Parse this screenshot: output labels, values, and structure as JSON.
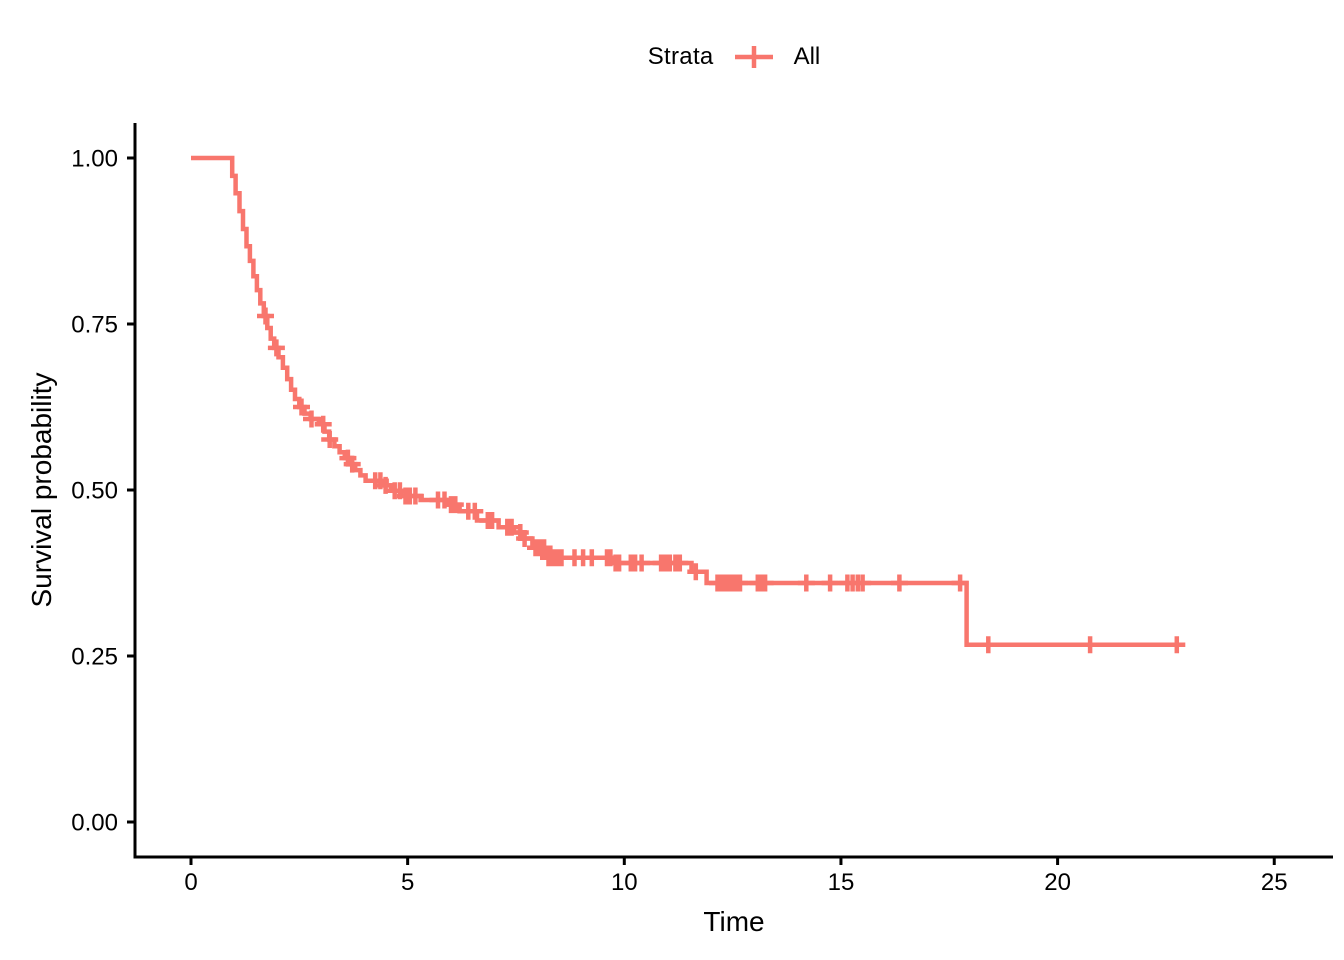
{
  "legend": {
    "title": "Strata",
    "items": [
      {
        "label": "All",
        "color": "#F8766D",
        "key_icon": "plus-cross"
      }
    ]
  },
  "axes": {
    "x": {
      "label": "Time",
      "tick_labels": [
        "0",
        "5",
        "10",
        "15",
        "20",
        "25"
      ],
      "tick_values": [
        0,
        5,
        10,
        15,
        20,
        25
      ]
    },
    "y": {
      "label": "Survival probability",
      "tick_labels": [
        "0.00",
        "0.25",
        "0.50",
        "0.75",
        "1.00"
      ],
      "tick_values": [
        0,
        0.25,
        0.5,
        0.75,
        1.0
      ]
    }
  },
  "colors": {
    "curve": "#F8766D",
    "axis": "#000000",
    "background": "#FFFFFF"
  },
  "chart_data": {
    "type": "line",
    "subtype": "kaplan-meier-step-curve",
    "title": "",
    "xlabel": "Time",
    "ylabel": "Survival probability",
    "xlim": [
      0,
      25
    ],
    "ylim": [
      0,
      1
    ],
    "grid": false,
    "legend_position": "top-center",
    "legend_title": "Strata",
    "series": [
      {
        "name": "All",
        "color": "#F8766D",
        "step_points": [
          [
            0,
            1.0
          ],
          [
            0.95,
            0.973
          ],
          [
            1.03,
            0.947
          ],
          [
            1.12,
            0.92
          ],
          [
            1.2,
            0.893
          ],
          [
            1.28,
            0.867
          ],
          [
            1.36,
            0.845
          ],
          [
            1.44,
            0.822
          ],
          [
            1.52,
            0.801
          ],
          [
            1.6,
            0.781
          ],
          [
            1.68,
            0.762
          ],
          [
            1.76,
            0.744
          ],
          [
            1.84,
            0.728
          ],
          [
            1.92,
            0.714
          ],
          [
            2.02,
            0.7
          ],
          [
            2.12,
            0.684
          ],
          [
            2.22,
            0.667
          ],
          [
            2.31,
            0.651
          ],
          [
            2.4,
            0.637
          ],
          [
            2.5,
            0.625
          ],
          [
            2.62,
            0.615
          ],
          [
            2.76,
            0.607
          ],
          [
            2.95,
            0.599
          ],
          [
            3.08,
            0.588
          ],
          [
            3.19,
            0.576
          ],
          [
            3.31,
            0.566
          ],
          [
            3.43,
            0.557
          ],
          [
            3.55,
            0.548
          ],
          [
            3.67,
            0.539
          ],
          [
            3.79,
            0.53
          ],
          [
            3.91,
            0.522
          ],
          [
            4.03,
            0.514
          ],
          [
            4.4,
            0.507
          ],
          [
            4.62,
            0.499
          ],
          [
            4.85,
            0.491
          ],
          [
            5.3,
            0.485
          ],
          [
            5.9,
            0.478
          ],
          [
            6.2,
            0.468
          ],
          [
            6.6,
            0.454
          ],
          [
            7.1,
            0.444
          ],
          [
            7.45,
            0.436
          ],
          [
            7.65,
            0.427
          ],
          [
            7.88,
            0.413
          ],
          [
            8.18,
            0.398
          ],
          [
            9.72,
            0.39
          ],
          [
            11.55,
            0.377
          ],
          [
            11.9,
            0.36
          ],
          [
            17.9,
            0.267
          ]
        ],
        "end_time": 22.85,
        "censor_times": [
          1.72,
          1.97,
          2.55,
          2.78,
          3.05,
          3.2,
          3.62,
          3.72,
          4.25,
          4.37,
          4.49,
          4.7,
          4.82,
          4.95,
          5.05,
          5.18,
          5.7,
          5.85,
          6.0,
          6.1,
          6.4,
          6.55,
          6.85,
          6.95,
          7.3,
          7.4,
          7.6,
          7.7,
          7.95,
          8.05,
          8.15,
          8.25,
          8.32,
          8.4,
          8.48,
          8.55,
          8.85,
          9.05,
          9.25,
          9.6,
          9.68,
          9.8,
          9.88,
          10.15,
          10.25,
          10.4,
          10.85,
          10.95,
          11.05,
          11.18,
          11.28,
          11.65,
          12.15,
          12.23,
          12.32,
          12.4,
          12.5,
          12.58,
          12.67,
          13.08,
          13.17,
          13.25,
          14.2,
          14.75,
          15.15,
          15.27,
          15.39,
          15.5,
          16.35,
          17.75,
          18.4,
          20.75,
          22.75
        ]
      }
    ]
  }
}
